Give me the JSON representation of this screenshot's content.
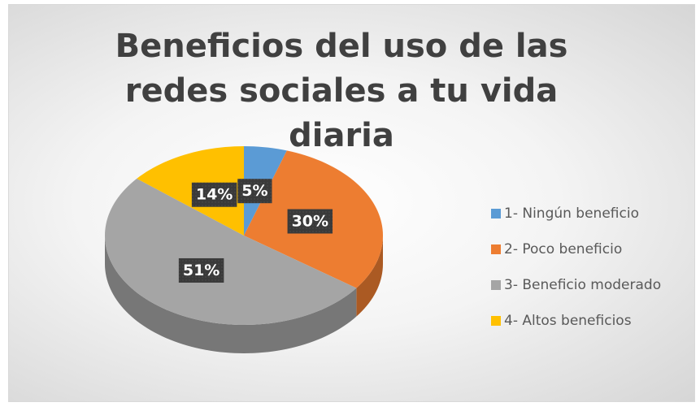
{
  "chart_data": {
    "type": "pie",
    "title": "Beneficios del uso de las redes sociales a tu vida diaria",
    "categories": [
      "1- Ningún beneficio",
      "2- Poco beneficio",
      "3- Beneficio moderado",
      "4- Altos beneficios"
    ],
    "values": [
      5,
      30,
      51,
      14
    ],
    "value_labels": [
      "5%",
      "30%",
      "51%",
      "14%"
    ],
    "colors": [
      "#5B9BD5",
      "#ED7D31",
      "#A5A5A5",
      "#FFC000"
    ],
    "legend": "right"
  }
}
